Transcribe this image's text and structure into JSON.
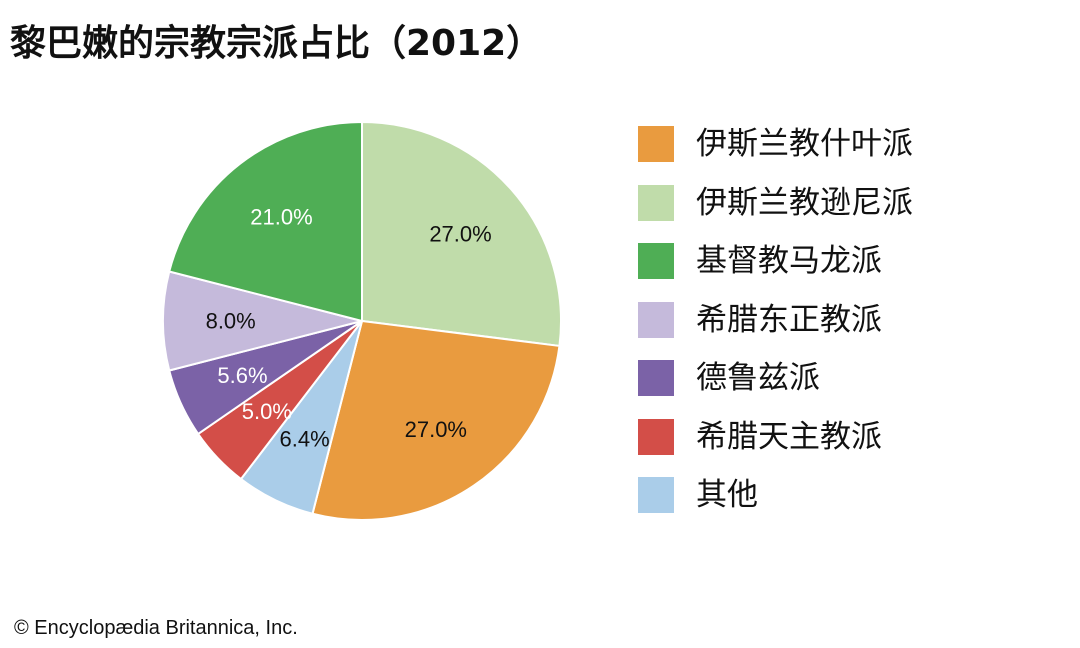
{
  "title": "黎巴嫩的宗教宗派占比（2012）",
  "credit": "© Encyclopædia Britannica, Inc.",
  "chart_data": {
    "type": "pie",
    "title": "黎巴嫩的宗教宗派占比（2012）",
    "unit": "%",
    "start": "12 o'clock, clockwise",
    "legend_position": "right",
    "slices": [
      {
        "label": "伊斯兰教逊尼派",
        "value": 27.0,
        "display": "27.0%",
        "color": "#c0dcaa",
        "text_color": "#111111"
      },
      {
        "label": "伊斯兰教什叶派",
        "value": 27.0,
        "display": "27.0%",
        "color": "#e99b3f",
        "text_color": "#111111"
      },
      {
        "label": "其他",
        "value": 6.4,
        "display": "6.4%",
        "color": "#aacde9",
        "text_color": "#111111"
      },
      {
        "label": "希腊天主教派",
        "value": 5.0,
        "display": "5.0%",
        "color": "#d34e48",
        "text_color": "#ffffff"
      },
      {
        "label": "德鲁兹派",
        "value": 5.6,
        "display": "5.6%",
        "color": "#7b62a7",
        "text_color": "#ffffff"
      },
      {
        "label": "希腊东正教派",
        "value": 8.0,
        "display": "8.0%",
        "color": "#c5badb",
        "text_color": "#111111"
      },
      {
        "label": "基督教马龙派",
        "value": 21.0,
        "display": "21.0%",
        "color": "#4fae55",
        "text_color": "#ffffff"
      }
    ],
    "legend": [
      {
        "label": "伊斯兰教什叶派",
        "color": "#e99b3f"
      },
      {
        "label": "伊斯兰教逊尼派",
        "color": "#c0dcaa"
      },
      {
        "label": "基督教马龙派",
        "color": "#4fae55"
      },
      {
        "label": "希腊东正教派",
        "color": "#c5badb"
      },
      {
        "label": "德鲁兹派",
        "color": "#7b62a7"
      },
      {
        "label": "希腊天主教派",
        "color": "#d34e48"
      },
      {
        "label": "其他",
        "color": "#aacde9"
      }
    ]
  }
}
